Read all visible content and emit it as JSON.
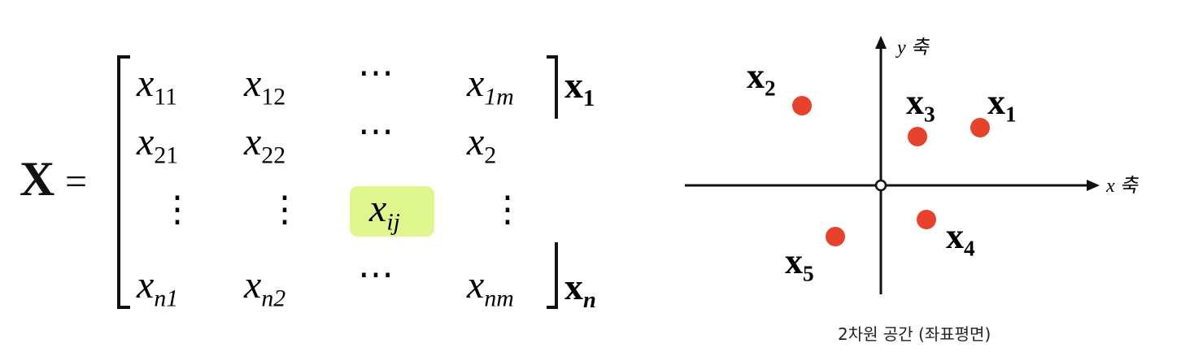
{
  "matrix": {
    "name": "X",
    "equals": "=",
    "cells": [
      [
        {
          "v": "x",
          "s": "11"
        },
        {
          "v": "x",
          "s": "12"
        },
        {
          "v": "⋯",
          "s": ""
        },
        {
          "v": "x",
          "s": "1m"
        }
      ],
      [
        {
          "v": "x",
          "s": "21"
        },
        {
          "v": "x",
          "s": "22"
        },
        {
          "v": "⋯",
          "s": ""
        },
        {
          "v": "x",
          "s": "2"
        }
      ],
      [
        {
          "v": "⋮",
          "s": ""
        },
        {
          "v": "⋮",
          "s": ""
        },
        {
          "v": "x",
          "s": "ij"
        },
        {
          "v": "⋮",
          "s": ""
        }
      ],
      [
        {
          "v": "x",
          "s": "n1"
        },
        {
          "v": "x",
          "s": "n2"
        },
        {
          "v": "⋯",
          "s": ""
        },
        {
          "v": "x",
          "s": "nm"
        }
      ]
    ],
    "row_labels": [
      {
        "v": "x",
        "s": "1"
      },
      {
        "v": "x",
        "s": "n"
      }
    ],
    "highlight_color": "#dff58e"
  },
  "plane": {
    "y_axis_label": "y 축",
    "x_axis_label": "x 축",
    "point_color": "#e8412c",
    "points": [
      {
        "label": "x",
        "sub": "1"
      },
      {
        "label": "x",
        "sub": "2"
      },
      {
        "label": "x",
        "sub": "3"
      },
      {
        "label": "x",
        "sub": "4"
      },
      {
        "label": "x",
        "sub": "5"
      }
    ],
    "caption": "2차원 공간 (좌표평면)"
  }
}
